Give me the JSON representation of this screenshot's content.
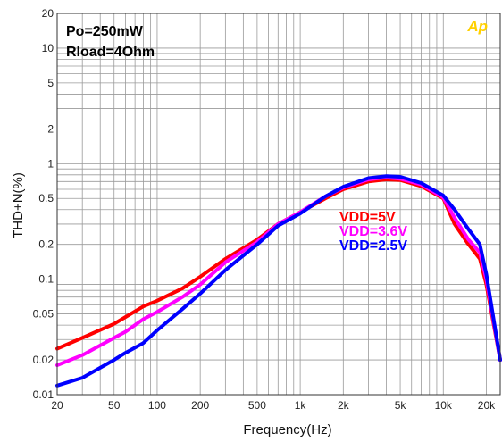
{
  "chart_data": {
    "type": "line",
    "title": "",
    "xlabel": "Frequency(Hz)",
    "ylabel": "THD+N(%)",
    "xscale": "log",
    "yscale": "log",
    "xlim": [
      20,
      25000
    ],
    "ylim": [
      0.01,
      20
    ],
    "grid": true,
    "x_ticks": [
      20,
      50,
      100,
      200,
      500,
      1000,
      2000,
      5000,
      10000,
      20000
    ],
    "x_tick_labels": [
      "20",
      "50",
      "100",
      "200",
      "500",
      "1k",
      "2k",
      "5k",
      "10k",
      "20k"
    ],
    "y_ticks": [
      0.01,
      0.02,
      0.05,
      0.1,
      0.2,
      0.5,
      1,
      2,
      5,
      10,
      20
    ],
    "y_tick_labels": [
      "0.01",
      "0.02",
      "0.05",
      "0.1",
      "0.2",
      "0.5",
      "1",
      "2",
      "5",
      "10",
      "20"
    ],
    "annotations": [
      "Po=250mW",
      "Rload=4Ohm"
    ],
    "logo_text": "Ap",
    "legend_placement": "center-right",
    "series": [
      {
        "name": "VDD=5V",
        "color": "#ff0000",
        "x": [
          20,
          30,
          50,
          60,
          80,
          100,
          150,
          200,
          300,
          500,
          700,
          1000,
          1500,
          2000,
          3000,
          4000,
          5000,
          7000,
          10000,
          12000,
          15000,
          18000,
          20000,
          25000
        ],
        "y": [
          0.025,
          0.031,
          0.041,
          0.047,
          0.058,
          0.065,
          0.083,
          0.105,
          0.15,
          0.22,
          0.3,
          0.38,
          0.5,
          0.6,
          0.7,
          0.73,
          0.72,
          0.64,
          0.5,
          0.3,
          0.2,
          0.15,
          0.09,
          0.02
        ]
      },
      {
        "name": "VDD=3.6V",
        "color": "#ff00ff",
        "x": [
          20,
          30,
          50,
          60,
          80,
          100,
          150,
          200,
          300,
          500,
          700,
          1000,
          1500,
          2000,
          3000,
          4000,
          5000,
          7000,
          10000,
          12000,
          15000,
          18000,
          20000,
          25000
        ],
        "y": [
          0.018,
          0.022,
          0.031,
          0.035,
          0.045,
          0.052,
          0.07,
          0.09,
          0.14,
          0.21,
          0.3,
          0.38,
          0.52,
          0.62,
          0.73,
          0.76,
          0.74,
          0.66,
          0.51,
          0.34,
          0.22,
          0.17,
          0.1,
          0.02
        ]
      },
      {
        "name": "VDD=2.5V",
        "color": "#0000ff",
        "x": [
          20,
          30,
          50,
          60,
          80,
          100,
          150,
          200,
          300,
          500,
          700,
          1000,
          1500,
          2000,
          3000,
          4000,
          5000,
          7000,
          10000,
          12000,
          15000,
          18000,
          20000,
          25000
        ],
        "y": [
          0.012,
          0.014,
          0.02,
          0.023,
          0.028,
          0.036,
          0.055,
          0.075,
          0.12,
          0.2,
          0.29,
          0.37,
          0.52,
          0.63,
          0.75,
          0.78,
          0.77,
          0.68,
          0.53,
          0.4,
          0.27,
          0.2,
          0.11,
          0.02
        ]
      }
    ]
  }
}
